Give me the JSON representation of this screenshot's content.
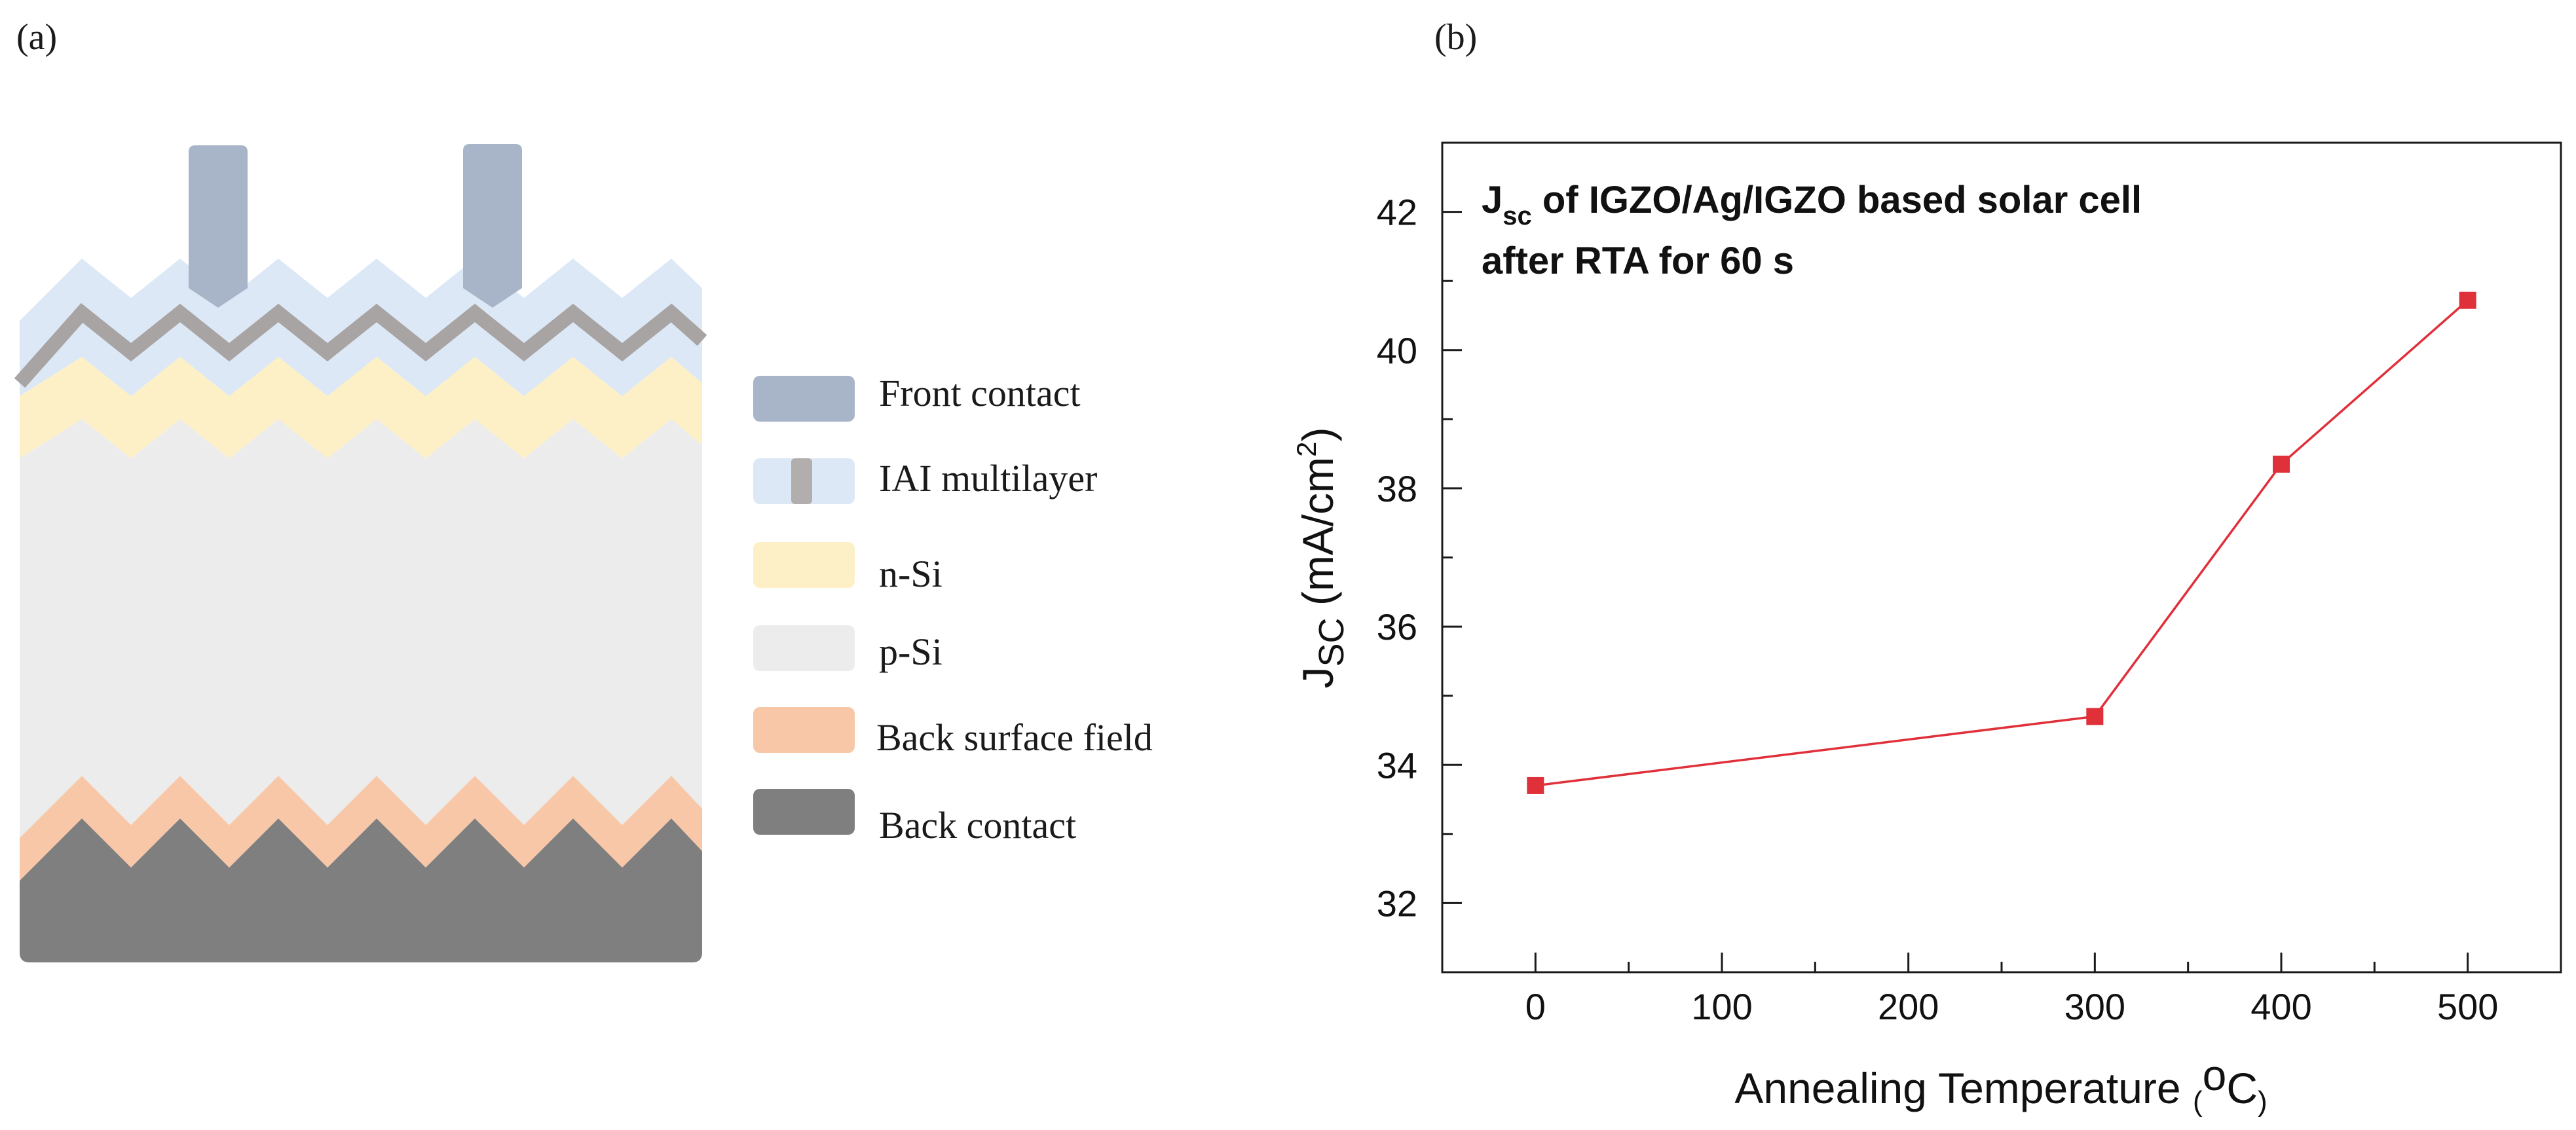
{
  "panel_a": {
    "label": "(a)",
    "legend": [
      {
        "label": "Front contact",
        "color": "#a8b4c8",
        "icon": "front-contact-swatch"
      },
      {
        "label": "IAI multilayer",
        "color": "#dce8f6",
        "inner_color": "#b3aeae",
        "icon": "iai-multilayer-swatch"
      },
      {
        "label": "n-Si",
        "color": "#fdf0c6",
        "icon": "n-si-swatch"
      },
      {
        "label": "p-Si",
        "color": "#ececec",
        "icon": "p-si-swatch"
      },
      {
        "label": "Back surface field",
        "color": "#f7c7a7",
        "icon": "back-surface-field-swatch"
      },
      {
        "label": "Back contact",
        "color": "#7f7f7f",
        "icon": "back-contact-swatch"
      }
    ]
  },
  "panel_b": {
    "label": "(b)"
  },
  "chart_data": {
    "type": "line",
    "title_line1_main": "J",
    "title_line1_sub": "sc",
    "title_line1_rest": " of IGZO/Ag/IGZO based solar cell",
    "title_line2": "after RTA for 60 s",
    "ylabel_main": "J",
    "ylabel_sub": "SC",
    "ylabel_rest": " (mA/cm",
    "ylabel_sup": "2",
    "ylabel_close": ")",
    "xlabel_main": "Annealing Temperature ",
    "xlabel_open": "(",
    "xlabel_sup": "o",
    "xlabel_C": "C",
    "xlabel_close": ")",
    "x": [
      0,
      300,
      400,
      500
    ],
    "y": [
      33.7,
      34.7,
      38.35,
      40.72
    ],
    "xlim": [
      -50,
      550
    ],
    "ylim": [
      31,
      43
    ],
    "xticks": [
      0,
      100,
      200,
      300,
      400,
      500
    ],
    "yticks": [
      32,
      34,
      36,
      38,
      40,
      42
    ],
    "series_color": "#e0303a",
    "grid": false
  }
}
